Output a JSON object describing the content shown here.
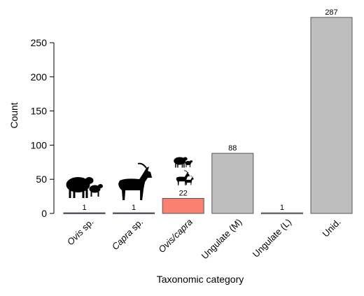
{
  "chart_data": {
    "type": "bar",
    "title": "",
    "xlabel": "Taxonomic category",
    "ylabel": "Count",
    "ylim": [
      0,
      290
    ],
    "yticks": [
      0,
      50,
      100,
      150,
      200,
      250
    ],
    "grid": false,
    "categories": [
      {
        "label": "Ovis sp.",
        "italic_part": "Ovis",
        "rest": " sp."
      },
      {
        "label": "Capra sp.",
        "italic_part": "Capra",
        "rest": " sp."
      },
      {
        "label": "Ovis/capra",
        "italic_part": "Ovis/capra",
        "rest": ""
      },
      {
        "label": "Ungulate (M)",
        "italic_part": "",
        "rest": "Ungulate (M)"
      },
      {
        "label": "Ungulate (L)",
        "italic_part": "",
        "rest": "Ungulate (L)"
      },
      {
        "label": "Unid.",
        "italic_part": "",
        "rest": "Unid."
      }
    ],
    "values": [
      1,
      1,
      22,
      88,
      1,
      287
    ],
    "bar_colors": [
      "#5a6e96",
      "#5a6e96",
      "#fa8072",
      "#bebebe",
      "#bebebe",
      "#bebebe"
    ],
    "icons": [
      {
        "category": 0,
        "name": "sheep-with-lamb-icon"
      },
      {
        "category": 1,
        "name": "goat-icon"
      },
      {
        "category": 2,
        "name": "sheep-with-lamb-icon"
      },
      {
        "category": 2,
        "name": "goat-with-kid-icon"
      }
    ]
  }
}
